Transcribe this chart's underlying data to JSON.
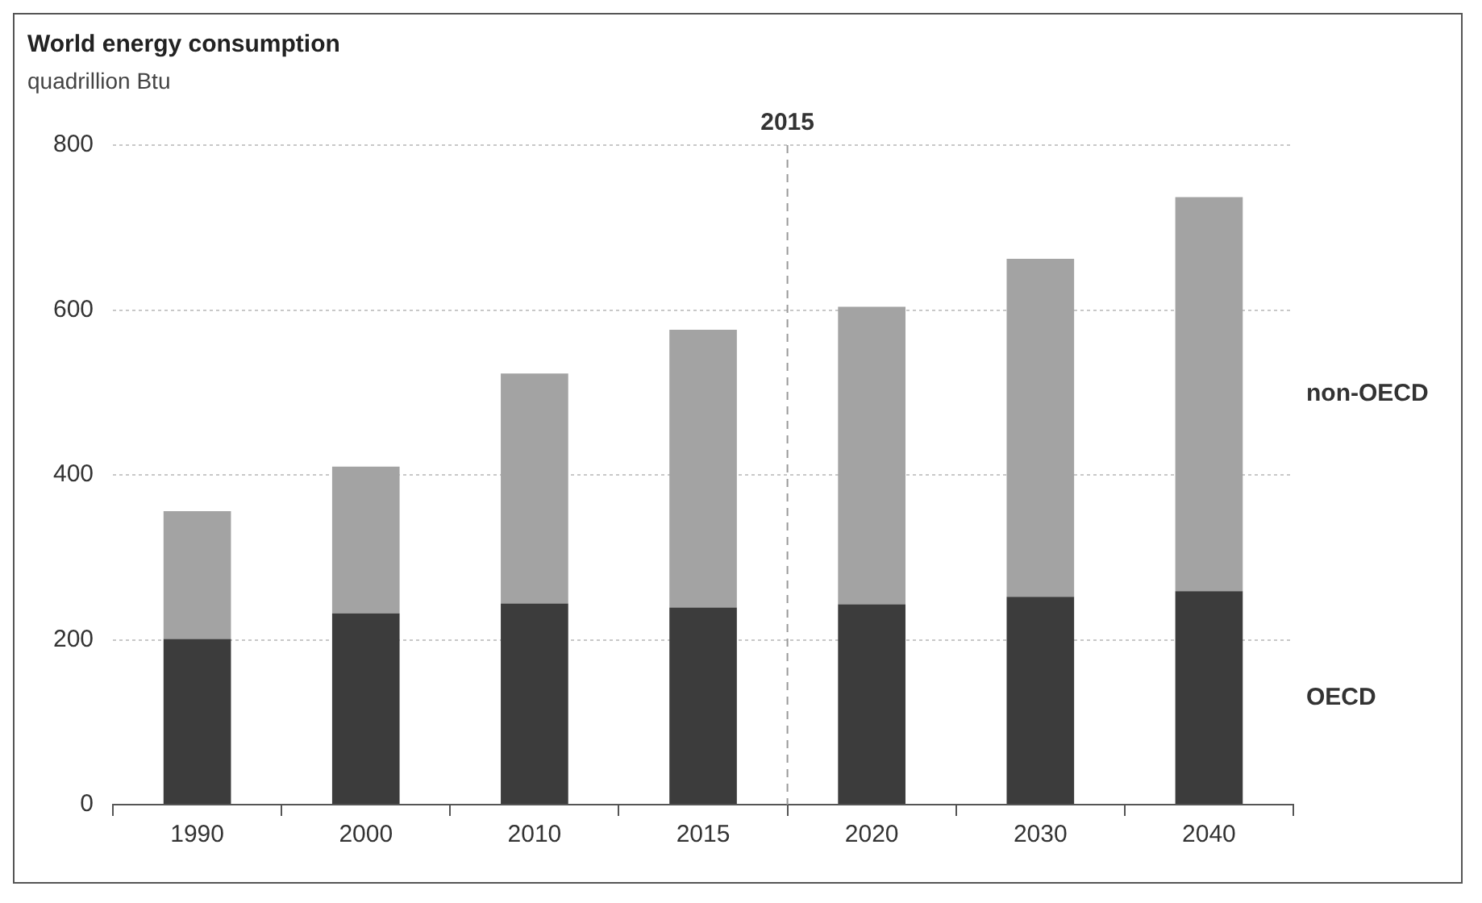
{
  "chart_data": {
    "type": "bar",
    "title": "World energy consumption",
    "subtitle": "quadrillion Btu",
    "categories": [
      "1990",
      "2000",
      "2010",
      "2015",
      "2020",
      "2030",
      "2040"
    ],
    "series": [
      {
        "name": "OECD",
        "color": "#3c3c3c",
        "values": [
          201,
          232,
          244,
          239,
          243,
          252,
          259
        ]
      },
      {
        "name": "non-OECD",
        "color": "#a3a3a3",
        "values": [
          155,
          178,
          279,
          337,
          361,
          410,
          478
        ]
      }
    ],
    "stacked": true,
    "ylim": [
      0,
      800
    ],
    "yticks": [
      0,
      200,
      400,
      600,
      800
    ],
    "grid": "y",
    "legend": false,
    "ref_lines": [
      {
        "axis": "x",
        "value": "2015",
        "label": "2015",
        "color": "#999999",
        "line_style": "dashed"
      }
    ]
  }
}
